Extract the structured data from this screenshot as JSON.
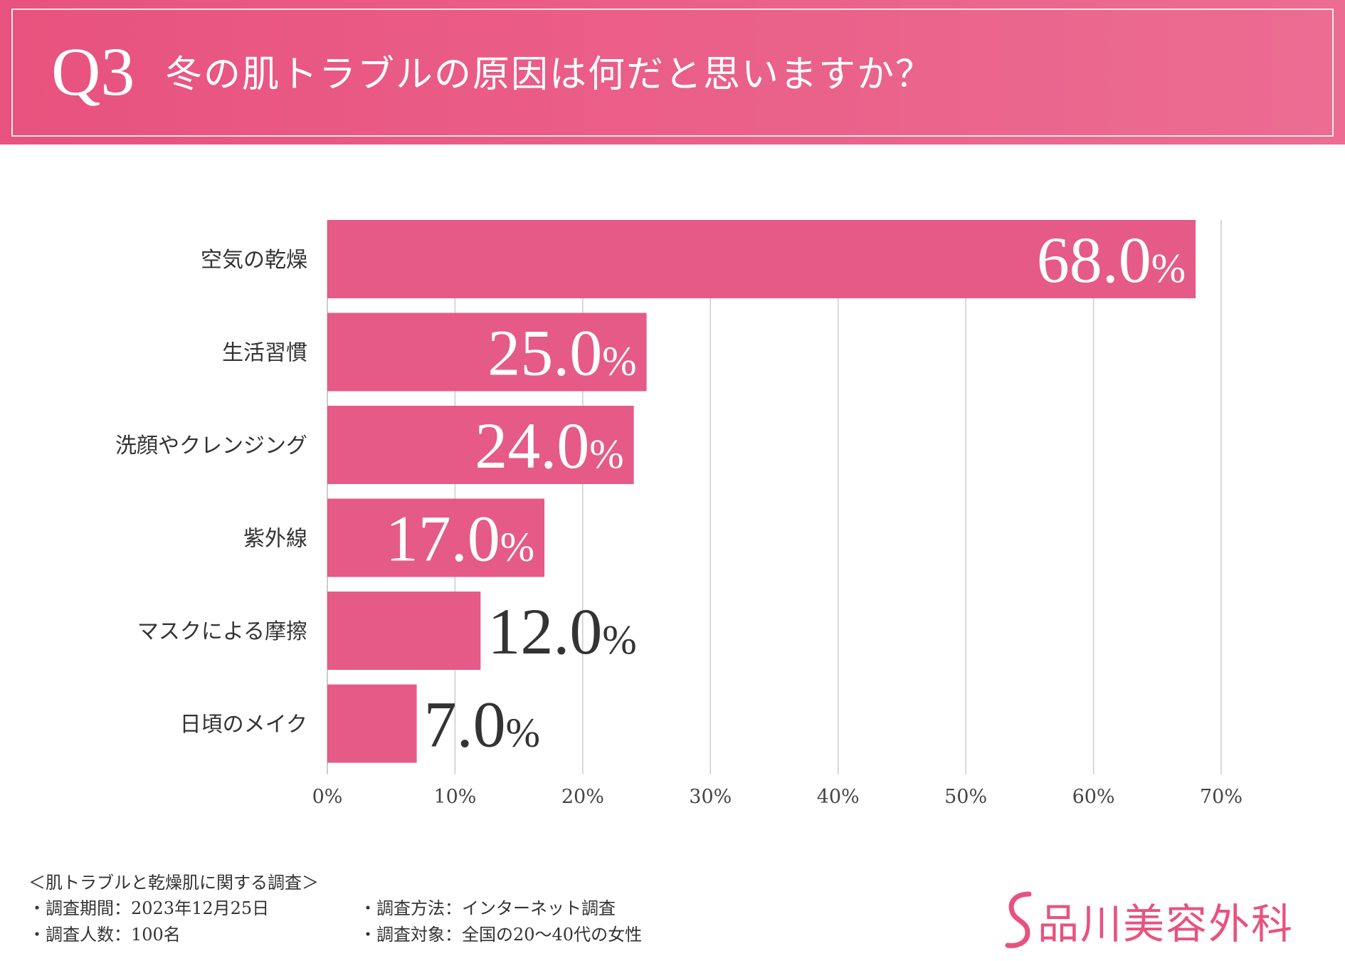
{
  "header": {
    "question_number": "Q3",
    "title": "冬の肌トラブルの原因は何だと思いますか？"
  },
  "colors": {
    "accent": "#e8527e",
    "bar": "#e65a87",
    "grid": "#cccccc"
  },
  "chart_data": {
    "type": "bar",
    "orientation": "horizontal",
    "categories": [
      "空気の乾燥",
      "生活習慣",
      "洗顔やクレンジング",
      "紫外線",
      "マスクによる摩擦",
      "日頃のメイク"
    ],
    "values": [
      68.0,
      25.0,
      24.0,
      17.0,
      12.0,
      7.0
    ],
    "data_labels": [
      "68.0",
      "25.0",
      "24.0",
      "17.0",
      "12.0",
      "7.0"
    ],
    "label_unit": "%",
    "xlim": [
      0,
      70
    ],
    "x_ticks": [
      "0%",
      "10%",
      "20%",
      "30%",
      "40%",
      "50%",
      "60%",
      "70%"
    ],
    "x_tick_values": [
      0,
      10,
      20,
      30,
      40,
      50,
      60,
      70
    ],
    "grid": true,
    "title": "",
    "xlabel": "",
    "ylabel": ""
  },
  "footer": {
    "survey_title": "＜肌トラブルと乾燥肌に関する調査＞",
    "period": "・調査期間：2023年12月25日",
    "respondents": "・調査人数：100名",
    "method": "・調査方法：インターネット調査",
    "target": "・調査対象：全国の20〜40代の女性"
  },
  "logo": {
    "text": "品川美容外科",
    "mark_icon": "s-swoosh-icon"
  }
}
